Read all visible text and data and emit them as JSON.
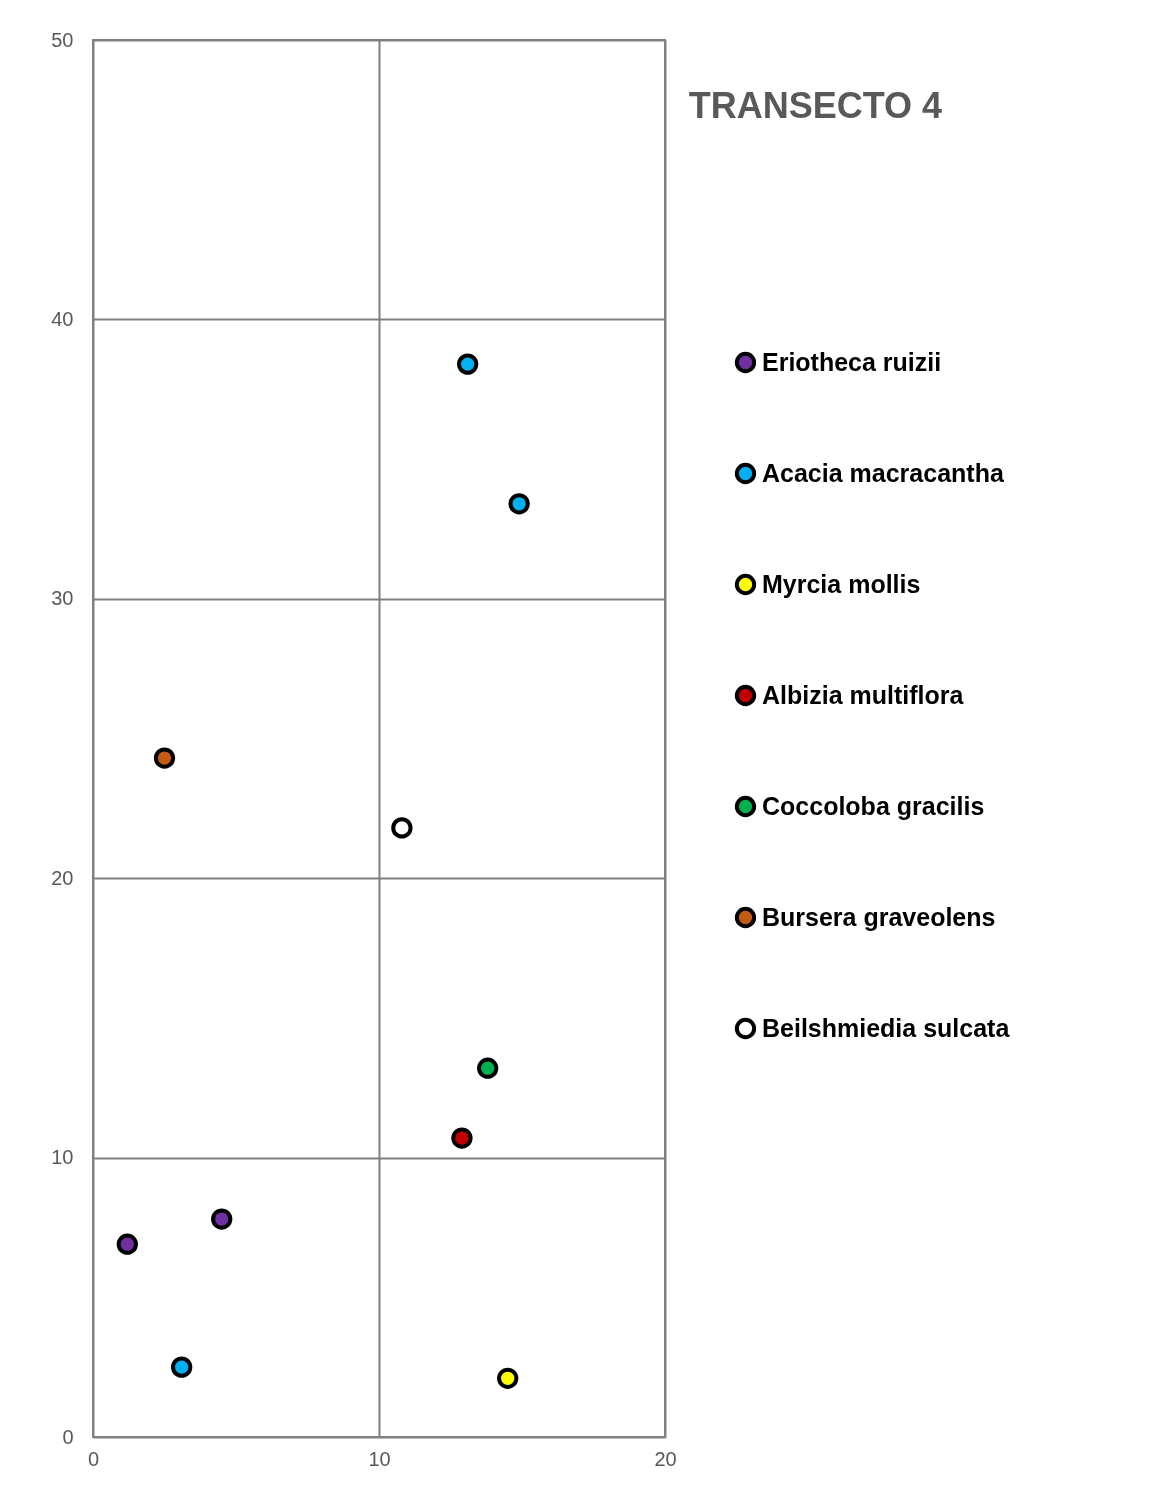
{
  "chart_data": {
    "type": "scatter",
    "title": "TRANSECTO 4",
    "xlim": [
      0,
      20
    ],
    "ylim": [
      0,
      50
    ],
    "xticks": [
      0,
      10,
      20
    ],
    "yticks": [
      0,
      10,
      20,
      30,
      40,
      50
    ],
    "grid": true,
    "legend": "right",
    "marker": "circle",
    "series": [
      {
        "name": "Eriotheca ruizii",
        "color": "#7030a0",
        "x": [
          1.2,
          4.5
        ],
        "values": [
          6.9,
          7.8
        ]
      },
      {
        "name": "Acacia macracantha",
        "color": "#00b0f0",
        "x": [
          13.1,
          14.9,
          3.1
        ],
        "values": [
          38.4,
          33.4,
          2.5
        ]
      },
      {
        "name": "Myrcia mollis",
        "color": "#ffff00",
        "x": [
          14.5
        ],
        "values": [
          2.1
        ]
      },
      {
        "name": "Albizia multiflora",
        "color": "#c00000",
        "x": [
          12.9
        ],
        "values": [
          10.7
        ]
      },
      {
        "name": "Coccoloba gracilis",
        "color": "#00b050",
        "x": [
          13.8
        ],
        "values": [
          13.2
        ]
      },
      {
        "name": "Bursera graveolens",
        "color": "#c55a11",
        "x": [
          2.5
        ],
        "values": [
          24.3
        ]
      },
      {
        "name": "Beilshmiedia sulcata",
        "color": "#ffffff",
        "x": [
          10.8
        ],
        "values": [
          21.8
        ]
      }
    ]
  }
}
